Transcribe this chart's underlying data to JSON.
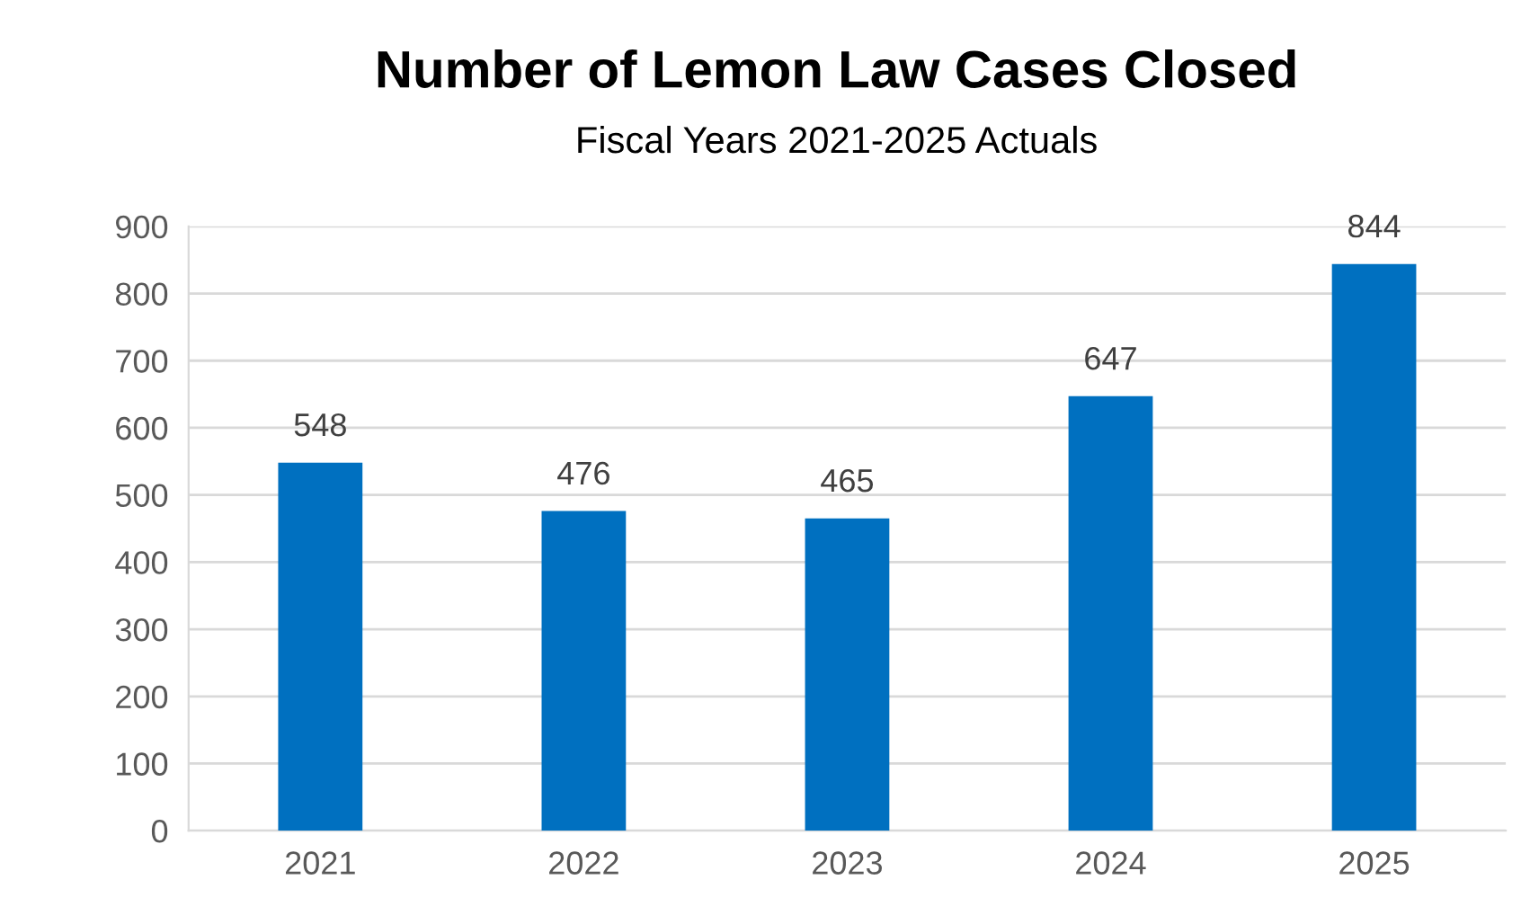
{
  "chart_data": {
    "type": "bar",
    "title": "Number of Lemon Law Cases Closed",
    "subtitle": "Fiscal Years 2021-2025 Actuals",
    "categories": [
      "2021",
      "2022",
      "2023",
      "2024",
      "2025"
    ],
    "values": [
      548,
      476,
      465,
      647,
      844
    ],
    "color": "#0070c0",
    "ylim": [
      0,
      900
    ],
    "yticks": [
      0,
      100,
      200,
      300,
      400,
      500,
      600,
      700,
      800,
      900
    ],
    "grid": "y",
    "data_labels": true,
    "legend": false
  }
}
